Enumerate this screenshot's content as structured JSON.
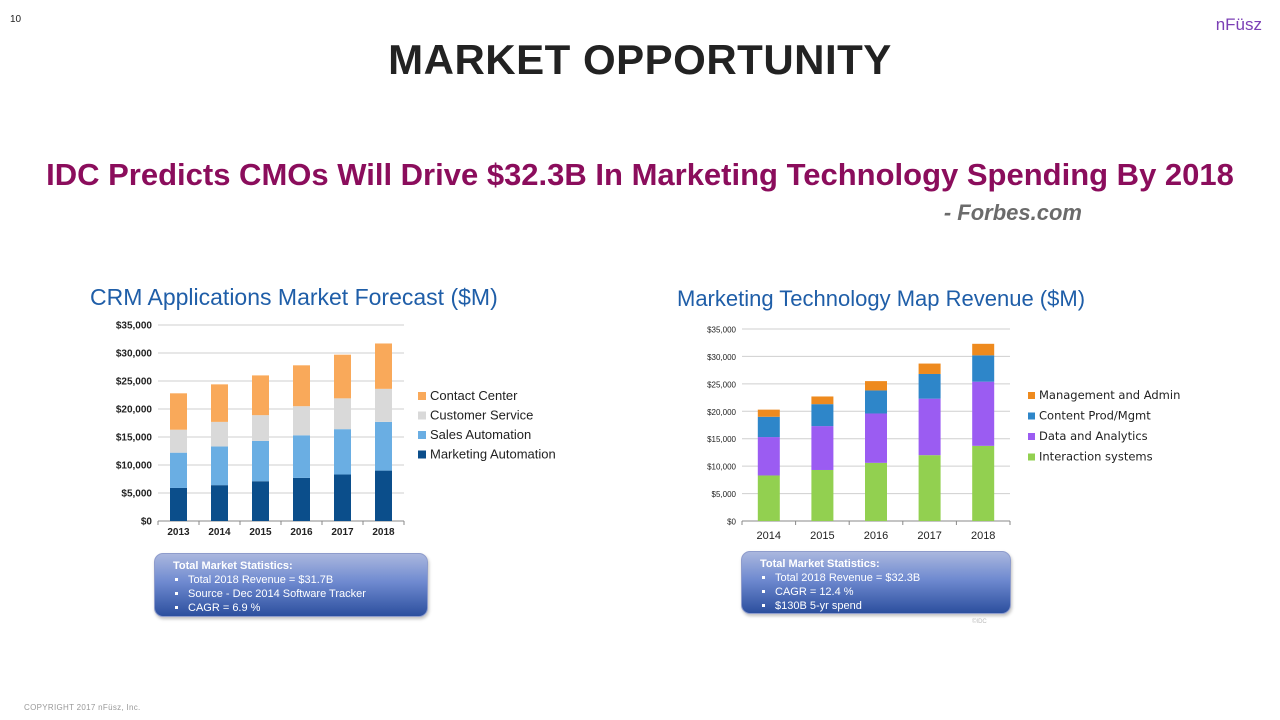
{
  "page_number": "10",
  "brand": "nFüsz",
  "title": "MARKET OPPORTUNITY",
  "headline": "IDC Predicts CMOs Will Drive $32.3B In Marketing Technology Spending By 2018",
  "attribution": "- Forbes.com",
  "copyright": "COPYRIGHT 2017 nFüsz, Inc.",
  "idc_mark": "©IDC",
  "colors": {
    "title": "#222222",
    "headline": "#8b0d5c",
    "chart_title": "#1f5ea8",
    "brand": "#7b3fb5"
  },
  "chart_data": [
    {
      "type": "bar",
      "stacked": true,
      "title": "CRM Applications Market Forecast ($M)",
      "categories": [
        "2013",
        "2014",
        "2015",
        "2016",
        "2017",
        "2018"
      ],
      "ylim": [
        0,
        35000
      ],
      "y_ticks": [
        "$0",
        "$5,000",
        "$10,000",
        "$15,000",
        "$20,000",
        "$25,000",
        "$30,000",
        "$35,000"
      ],
      "grid": true,
      "legend_position": "right",
      "series": [
        {
          "name": "Marketing Automation",
          "color": "#0b4e8b",
          "values": [
            5900,
            6400,
            7100,
            7700,
            8300,
            9000
          ]
        },
        {
          "name": "Sales Automation",
          "color": "#6aaee3",
          "values": [
            6300,
            6900,
            7200,
            7600,
            8100,
            8700
          ]
        },
        {
          "name": "Customer Service",
          "color": "#d9d9d9",
          "values": [
            4100,
            4400,
            4600,
            5200,
            5500,
            5900
          ]
        },
        {
          "name": "Contact Center",
          "color": "#f9a95a",
          "values": [
            6500,
            6700,
            7100,
            7300,
            7800,
            8100
          ]
        }
      ],
      "stats": {
        "title": "Total Market Statistics:",
        "items": [
          "Total 2018 Revenue = $31.7B",
          "Source - Dec 2014 Software Tracker",
          "CAGR = 6.9 %"
        ]
      }
    },
    {
      "type": "bar",
      "stacked": true,
      "title": "Marketing Technology Map Revenue ($M)",
      "categories": [
        "2014",
        "2015",
        "2016",
        "2017",
        "2018"
      ],
      "ylim": [
        0,
        35000
      ],
      "y_ticks": [
        "$0",
        "$5,000",
        "$10,000",
        "$15,000",
        "$20,000",
        "$25,000",
        "$30,000",
        "$35,000"
      ],
      "grid": true,
      "legend_position": "right",
      "series": [
        {
          "name": "Interaction systems",
          "color": "#92d050",
          "values": [
            8300,
            9300,
            10600,
            12000,
            13700
          ]
        },
        {
          "name": "Data and Analytics",
          "color": "#9b5cf2",
          "values": [
            7000,
            8000,
            9000,
            10300,
            11700
          ]
        },
        {
          "name": "Content Prod/Mgmt",
          "color": "#2e86c9",
          "values": [
            3700,
            4000,
            4200,
            4500,
            4800
          ]
        },
        {
          "name": "Management and Admin",
          "color": "#ee8a1e",
          "values": [
            1300,
            1400,
            1700,
            1900,
            2100
          ]
        }
      ],
      "stats": {
        "title": "Total Market Statistics:",
        "items": [
          "Total 2018 Revenue = $32.3B",
          "CAGR = 12.4 %",
          "$130B 5-yr spend"
        ]
      }
    }
  ]
}
